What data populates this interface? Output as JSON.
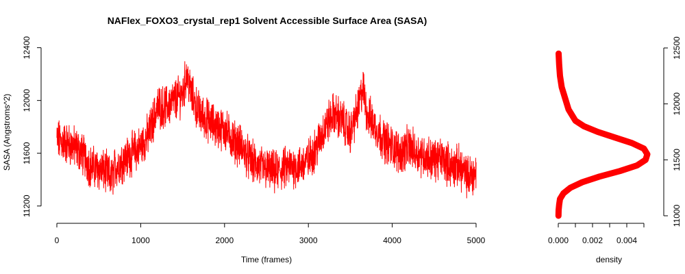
{
  "chart_data": [
    {
      "type": "line",
      "title": "NAFlex_FOXO3_crystal_rep1 Solvent Accessible Surface Area (SASA)",
      "xlabel": "Time (frames)",
      "ylabel": "SASA (Angstroms^2)",
      "xlim": [
        0,
        5000
      ],
      "ylim": [
        11100,
        12450
      ],
      "xticks": [
        0,
        1000,
        2000,
        3000,
        4000,
        5000
      ],
      "yticks": [
        11200,
        11600,
        12000,
        12400
      ],
      "grid": false,
      "color": "#ff0000",
      "series": [
        {
          "x": [
            0,
            100,
            200,
            300,
            400,
            500,
            600,
            650,
            700,
            800,
            900,
            1000,
            1100,
            1200,
            1300,
            1400,
            1500,
            1550,
            1600,
            1700,
            1800,
            1900,
            2000,
            2100,
            2200,
            2300,
            2400,
            2500,
            2600,
            2700,
            2800,
            2900,
            3000,
            3100,
            3200,
            3300,
            3400,
            3500,
            3600,
            3650,
            3700,
            3800,
            3900,
            4000,
            4100,
            4200,
            4300,
            4400,
            4500,
            4600,
            4700,
            4800,
            4900,
            5000
          ],
          "y": [
            11700,
            11680,
            11650,
            11600,
            11500,
            11480,
            11450,
            11400,
            11500,
            11550,
            11600,
            11650,
            11750,
            11950,
            11950,
            12000,
            12050,
            12200,
            12050,
            11900,
            11850,
            11800,
            11780,
            11700,
            11650,
            11550,
            11500,
            11480,
            11450,
            11480,
            11500,
            11500,
            11550,
            11650,
            11800,
            11900,
            11850,
            11750,
            11950,
            12100,
            11900,
            11800,
            11700,
            11650,
            11600,
            11650,
            11600,
            11580,
            11550,
            11560,
            11500,
            11500,
            11420,
            11450
          ]
        }
      ]
    },
    {
      "type": "line",
      "xlabel": "density",
      "xlim": [
        0,
        0.0052
      ],
      "ylim": [
        11000,
        12500
      ],
      "xticks": [
        0.0,
        0.002,
        0.004
      ],
      "xtick_labels": [
        "0.000",
        "0.002",
        "0.004"
      ],
      "yticks": [
        11000,
        11500,
        12000,
        12500
      ],
      "grid": false,
      "color": "#ff0000",
      "series": [
        {
          "x": [
            1e-05,
            2e-05,
            5e-05,
            0.0001,
            0.0003,
            0.0007,
            0.0014,
            0.0024,
            0.0036,
            0.0046,
            0.0051,
            0.0052,
            0.005,
            0.0043,
            0.0033,
            0.0023,
            0.0015,
            0.001,
            0.0008,
            0.0006,
            0.0004,
            0.0002,
            0.0001,
            5e-05,
            2e-05
          ],
          "y": [
            11000,
            11050,
            11100,
            11150,
            11200,
            11250,
            11300,
            11350,
            11400,
            11450,
            11500,
            11550,
            11600,
            11650,
            11700,
            11750,
            11800,
            11850,
            11900,
            11950,
            12050,
            12150,
            12250,
            12350,
            12450
          ]
        }
      ]
    }
  ]
}
